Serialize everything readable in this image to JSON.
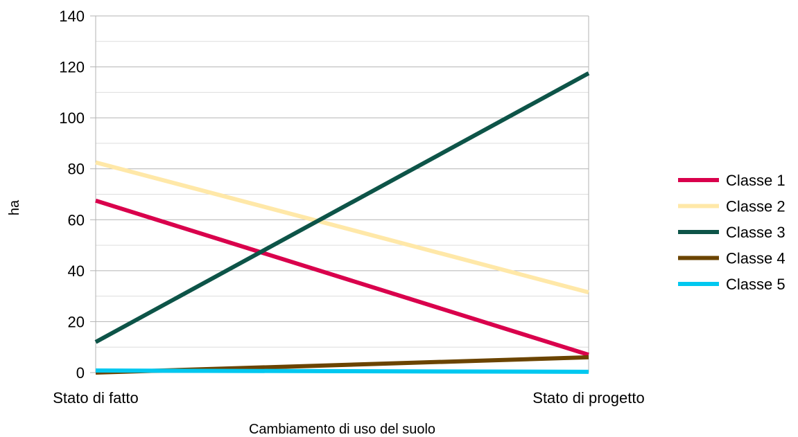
{
  "chart_data": {
    "type": "line",
    "title": "",
    "xlabel": "Cambiamento di uso del suolo",
    "ylabel": "ha",
    "categories": [
      "Stato di fatto",
      "Stato di progetto"
    ],
    "ylim": [
      0,
      140
    ],
    "yticks": [
      0,
      20,
      40,
      60,
      80,
      100,
      120,
      140
    ],
    "minor_grid": true,
    "grid": true,
    "legend_position": "right",
    "series": [
      {
        "name": "Classe 1",
        "color": "#d9004c",
        "values": [
          67.5,
          7
        ]
      },
      {
        "name": "Classe 2",
        "color": "#ffe8a8",
        "values": [
          82.5,
          31.5
        ]
      },
      {
        "name": "Classe 3",
        "color": "#0d5448",
        "values": [
          12,
          117.5
        ]
      },
      {
        "name": "Classe 4",
        "color": "#6b4400",
        "values": [
          0,
          6
        ]
      },
      {
        "name": "Classe 5",
        "color": "#00c8f0",
        "values": [
          0.8,
          0.3
        ]
      }
    ]
  }
}
